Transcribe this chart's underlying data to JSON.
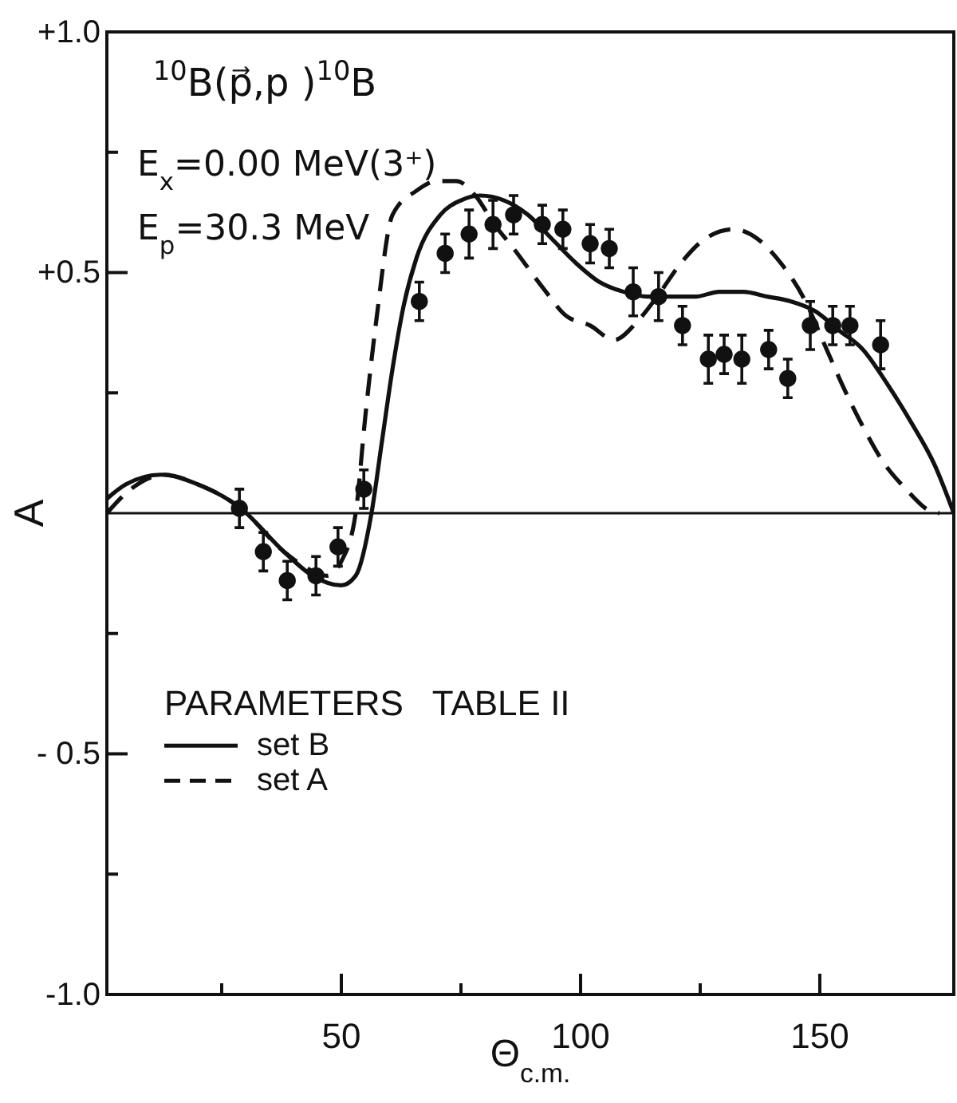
{
  "chart_data": {
    "type": "line",
    "xlabel": "Θ$_{c.m.}$",
    "ylabel": "A",
    "legend_title": "PARAMETERS   TABLE II",
    "legend": "left",
    "annotations": [
      "$^{10}$B(p⃗,p )$^{10}$B",
      "E$_{x}$=0.00 MeV(3⁺)",
      "E$_{p}$=30.3 MeV"
    ],
    "xlim": [
      1,
      178
    ],
    "xticks": [
      {
        "value": 25,
        "label": null
      },
      50,
      {
        "value": 75,
        "label": null
      },
      100,
      {
        "value": 125,
        "label": null
      },
      150
    ],
    "ylim": [
      -1,
      1
    ],
    "yticks": [
      {
        "value": -1,
        "label": "-1.0"
      },
      {
        "value": -0.75,
        "label": null
      },
      {
        "value": -0.5,
        "label": "- 0.5"
      },
      {
        "value": -0.25,
        "label": null
      },
      {
        "value": 0.25,
        "label": null
      },
      {
        "value": 0.5,
        "label": "+0.5"
      },
      {
        "value": 0.75,
        "label": null
      },
      {
        "value": 1,
        "label": "+1.0"
      }
    ],
    "ref_lines": [
      {
        "axis": "y",
        "value": 0,
        "label": null
      }
    ],
    "series": [
      {
        "type": "scatter",
        "color": "#111111",
        "marker": "circle",
        "x": [
          28.7,
          33.7,
          38.7,
          44.7,
          49.3,
          54.7,
          66.3,
          71.7,
          76.7,
          81.7,
          86,
          92,
          96.3,
          102,
          106,
          111,
          116.3,
          121.3,
          126.7,
          130,
          133.7,
          139.3,
          143.3,
          148,
          152.7,
          156.3,
          162.7
        ],
        "values": [
          0.01,
          -0.08,
          -0.14,
          -0.13,
          -0.07,
          0.05,
          0.44,
          0.54,
          0.58,
          0.6,
          0.62,
          0.6,
          0.59,
          0.56,
          0.55,
          0.46,
          0.45,
          0.39,
          0.32,
          0.33,
          0.32,
          0.34,
          0.28,
          0.39,
          0.39,
          0.39,
          0.35
        ],
        "errors": [
          0.04,
          0.04,
          0.04,
          0.04,
          0.04,
          0.04,
          0.04,
          0.04,
          0.05,
          0.05,
          0.04,
          0.04,
          0.04,
          0.04,
          0.04,
          0.05,
          0.05,
          0.04,
          0.05,
          0.04,
          0.05,
          0.04,
          0.04,
          0.05,
          0.04,
          0.04,
          0.05
        ]
      },
      {
        "name": "set B",
        "color": "#111111",
        "line_style": "solid",
        "x": [
          1,
          5,
          12.3,
          20,
          29,
          38,
          44,
          50,
          53,
          56.3,
          58.5,
          60.7,
          63,
          65.7,
          70.7,
          75,
          79,
          84,
          89,
          94,
          99,
          104,
          109,
          114,
          119,
          124,
          129,
          134,
          139,
          144,
          149,
          154,
          159,
          164,
          169,
          174,
          178
        ],
        "values": [
          0.03,
          0.06,
          0.08,
          0.06,
          0.01,
          -0.08,
          -0.13,
          -0.15,
          -0.13,
          0,
          0.15,
          0.3,
          0.43,
          0.53,
          0.62,
          0.65,
          0.66,
          0.65,
          0.62,
          0.57,
          0.52,
          0.48,
          0.46,
          0.45,
          0.45,
          0.45,
          0.46,
          0.46,
          0.45,
          0.44,
          0.42,
          0.38,
          0.34,
          0.27,
          0.19,
          0.1,
          0
        ]
      },
      {
        "name": "set A",
        "color": "#111111",
        "line_style": "dashed",
        "x": [
          1,
          6,
          13,
          20,
          29,
          38,
          44,
          47,
          50,
          53,
          55,
          57.3,
          60.7,
          65.7,
          70,
          74,
          78,
          82,
          86,
          92,
          97,
          102,
          107,
          112,
          116,
          121,
          126,
          132,
          137,
          141,
          147,
          151,
          155,
          159,
          163,
          168,
          173,
          175
        ],
        "values": [
          0,
          0.05,
          0.08,
          0.06,
          0.01,
          -0.08,
          -0.12,
          -0.13,
          -0.1,
          0,
          0.2,
          0.4,
          0.62,
          0.67,
          0.69,
          0.69,
          0.66,
          0.6,
          0.55,
          0.47,
          0.41,
          0.39,
          0.36,
          0.4,
          0.45,
          0.52,
          0.57,
          0.59,
          0.57,
          0.53,
          0.44,
          0.35,
          0.26,
          0.18,
          0.11,
          0.05,
          0.005,
          0
        ]
      }
    ]
  }
}
